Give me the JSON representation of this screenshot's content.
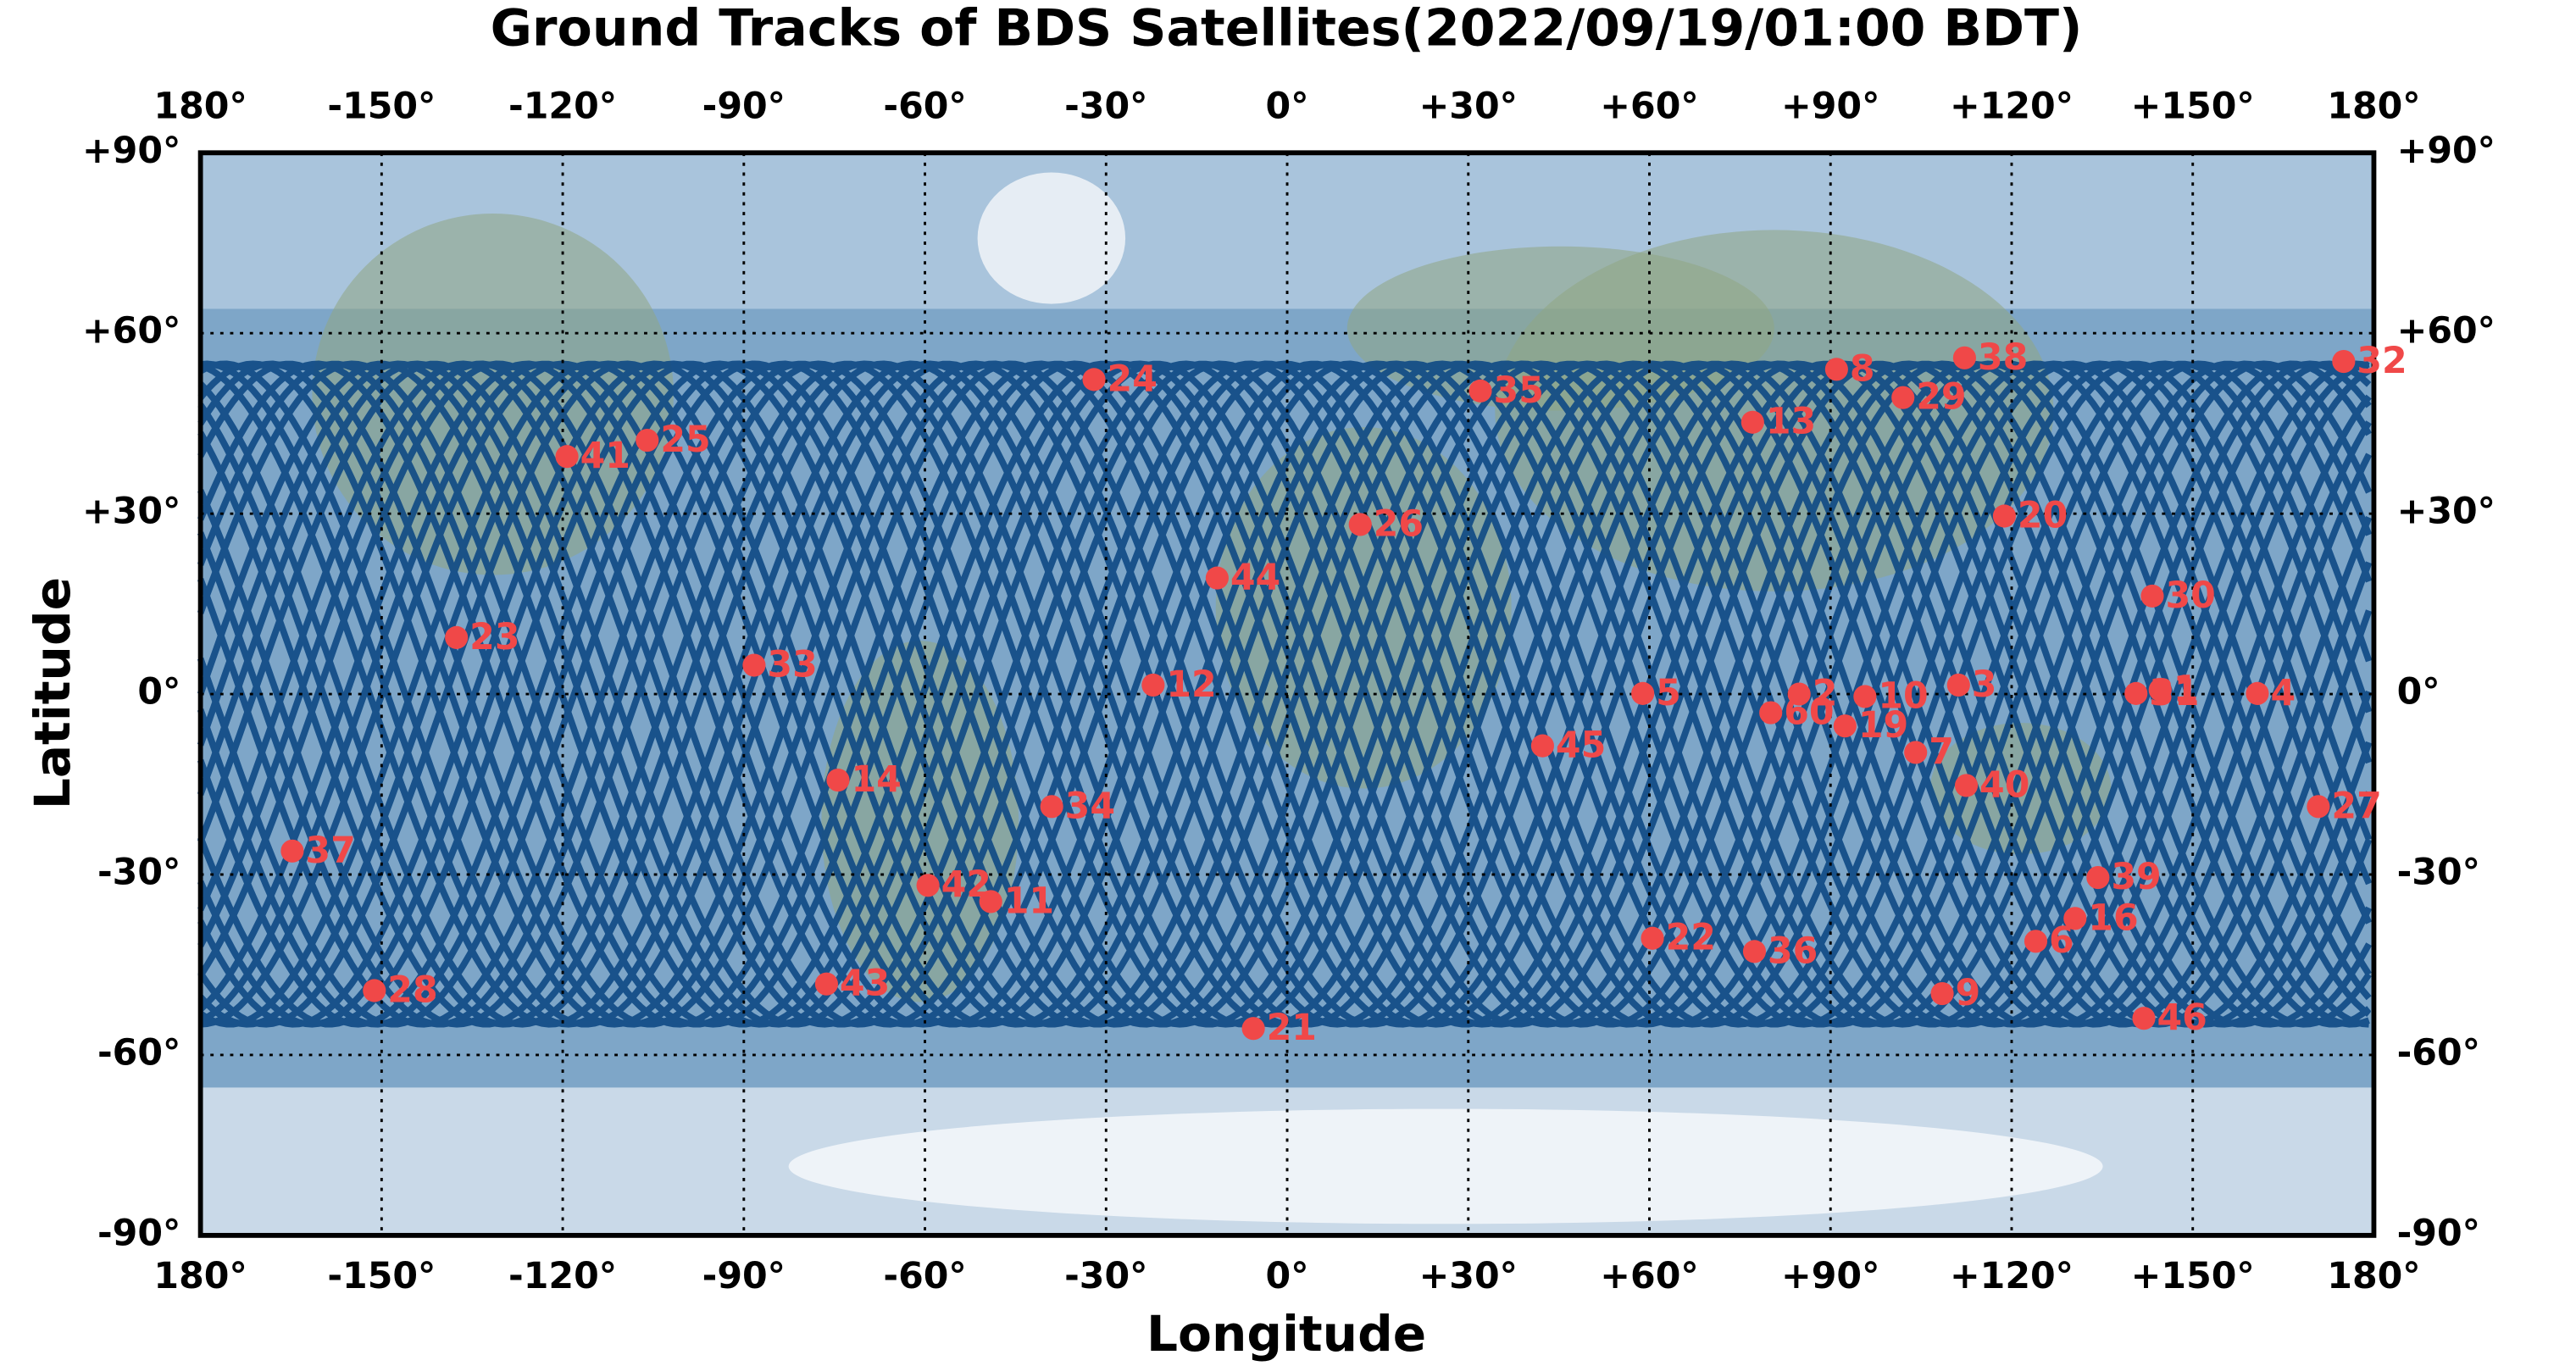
{
  "chart_data": {
    "type": "scatter",
    "title": "Ground Tracks of BDS Satellites(2022/09/19/01:00 BDT)",
    "x_label": "Longitude",
    "y_label": "Latitude",
    "xlim": [
      -180,
      180
    ],
    "ylim": [
      -90,
      90
    ],
    "xticks": [
      {
        "value": -180,
        "label": "180°"
      },
      {
        "value": -150,
        "label": "-150°"
      },
      {
        "value": -120,
        "label": "-120°"
      },
      {
        "value": -90,
        "label": "-90°"
      },
      {
        "value": -60,
        "label": "-60°"
      },
      {
        "value": -30,
        "label": "-30°"
      },
      {
        "value": 0,
        "label": "0°"
      },
      {
        "value": 30,
        "label": "+30°"
      },
      {
        "value": 60,
        "label": "+60°"
      },
      {
        "value": 90,
        "label": "+90°"
      },
      {
        "value": 120,
        "label": "+120°"
      },
      {
        "value": 150,
        "label": "+150°"
      },
      {
        "value": 180,
        "label": "180°"
      }
    ],
    "yticks": [
      {
        "value": 90,
        "label": "+90°"
      },
      {
        "value": 60,
        "label": "+60°"
      },
      {
        "value": 30,
        "label": "+30°"
      },
      {
        "value": 0,
        "label": "0°"
      },
      {
        "value": -30,
        "label": "-30°"
      },
      {
        "value": -60,
        "label": "-60°"
      },
      {
        "value": -90,
        "label": "-90°"
      }
    ],
    "grid": true,
    "series": [
      {
        "color": "#f04848",
        "labels": [
          "24",
          "35",
          "8",
          "38",
          "32",
          "29",
          "13",
          "41",
          "25",
          "26",
          "20",
          "44",
          "30",
          "23",
          "33",
          "12",
          "5",
          "2",
          "60",
          "10",
          "3",
          "19",
          "7",
          "31",
          "1",
          "4",
          "45",
          "14",
          "34",
          "40",
          "27",
          "37",
          "39",
          "42",
          "11",
          "16",
          "22",
          "36",
          "6",
          "43",
          "28",
          "9",
          "46",
          "21"
        ],
        "x": [
          -32,
          32,
          91,
          112.2,
          175,
          102,
          77.1,
          -119.3,
          -106,
          12.1,
          118.8,
          -11.6,
          143.3,
          -137.6,
          -88.3,
          -22.2,
          58.9,
          84.8,
          80.1,
          95.7,
          111.2,
          92.4,
          104.1,
          140.6,
          144.6,
          160.7,
          42.3,
          -74.4,
          -39,
          112.5,
          170.8,
          -164.8,
          134.3,
          -59.5,
          -49.1,
          130.5,
          60.5,
          77.4,
          124,
          -76.3,
          -151.2,
          108.5,
          141.9,
          -5.6
        ],
        "values": [
          52.3,
          50.4,
          54,
          55.9,
          55.3,
          49.3,
          45.2,
          39.5,
          42.2,
          28.2,
          29.6,
          19.3,
          16.3,
          9.4,
          4.8,
          1.5,
          0.1,
          0,
          -3.1,
          -0.4,
          1.5,
          -5.3,
          -9.7,
          0.1,
          0.7,
          0.1,
          -8.6,
          -14.3,
          -18.7,
          -15.2,
          -18.7,
          -26.1,
          -30.5,
          -31.8,
          -34.5,
          -37.3,
          -40.6,
          -42.8,
          -41.1,
          -48.2,
          -49.3,
          -49.8,
          -53.9,
          -55.6
        ]
      }
    ]
  }
}
